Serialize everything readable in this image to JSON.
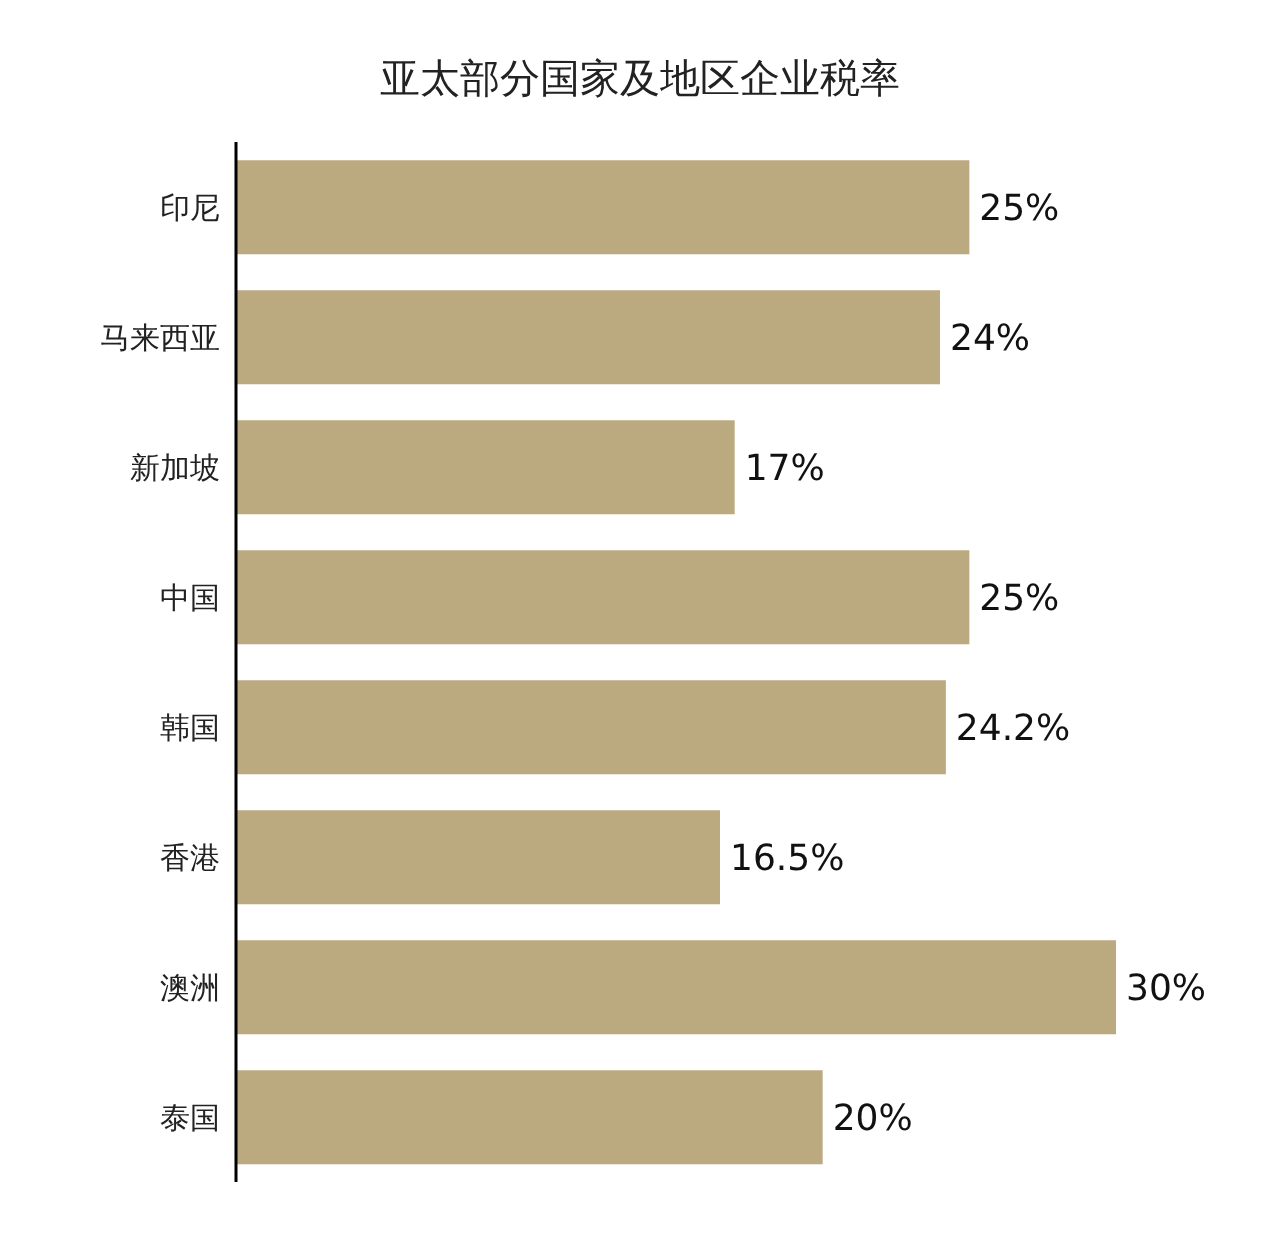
{
  "chart_data": {
    "type": "bar",
    "orientation": "horizontal",
    "title": "亚太部分国家及地区企业税率",
    "categories": [
      "印尼",
      "马来西亚",
      "新加坡",
      "中国",
      "韩国",
      "香港",
      "澳洲",
      "泰国"
    ],
    "values": [
      25,
      24,
      17,
      25,
      24.2,
      16.5,
      30,
      20
    ],
    "value_labels": [
      "25%",
      "24%",
      "17%",
      "25%",
      "24.2%",
      "16.5%",
      "30%",
      "20%"
    ],
    "color": "#bba97f"
  }
}
